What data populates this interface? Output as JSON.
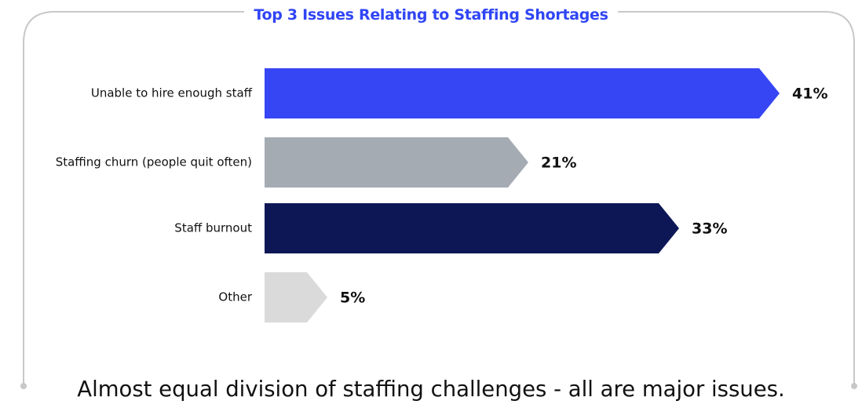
{
  "colors": {
    "frame": "#c8c8c8",
    "title": "#3045f5",
    "text": "#111111"
  },
  "chart_data": {
    "type": "bar",
    "orientation": "horizontal",
    "title": "Top 3 Issues Relating to Staffing Shortages",
    "categories": [
      "Unable to hire enough staff",
      "Staffing churn (people quit often)",
      "Staff burnout",
      "Other"
    ],
    "values": [
      41,
      21,
      33,
      5
    ],
    "value_labels": [
      "41%",
      "21%",
      "33%",
      "5%"
    ],
    "unit": "%",
    "bar_colors": [
      "#3646f5",
      "#a5abb3",
      "#0e1756",
      "#dadada"
    ],
    "bar_shape": "arrow",
    "grid": false,
    "legend": "none"
  },
  "caption": "Almost equal division of staffing challenges - all are major issues."
}
